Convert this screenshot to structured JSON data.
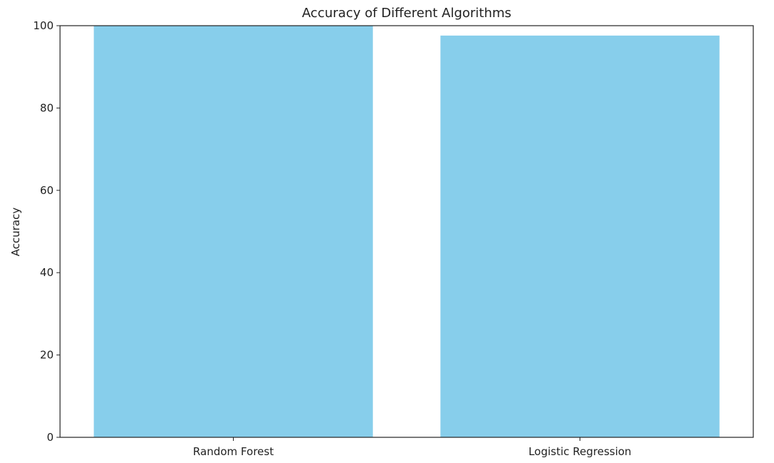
{
  "chart_data": {
    "type": "bar",
    "title": "Accuracy of Different Algorithms",
    "xlabel": "",
    "ylabel": "Accuracy",
    "categories": [
      "Random Forest",
      "Logistic Regression"
    ],
    "values": [
      100,
      97.6
    ],
    "ylim": [
      0,
      100
    ],
    "yticks": [
      0,
      20,
      40,
      60,
      80,
      100
    ],
    "bar_color": "#87CEEB",
    "grid": false,
    "legend": "none"
  }
}
